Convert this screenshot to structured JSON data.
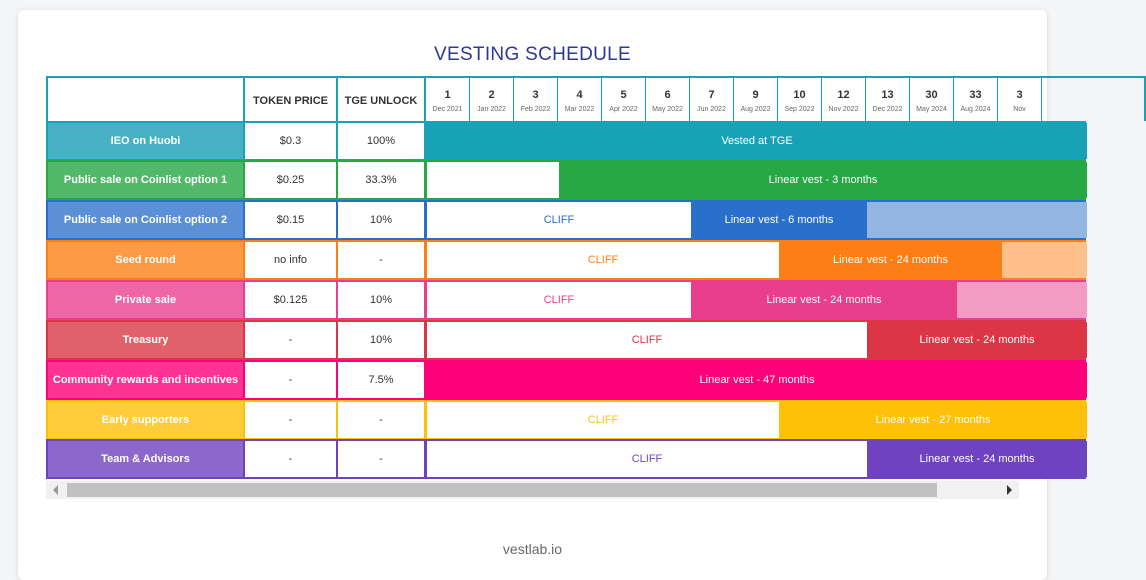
{
  "title": "VESTING SCHEDULE",
  "headers": {
    "token_price": "TOKEN PRICE",
    "tge_unlock": "TGE UNLOCK"
  },
  "months": [
    {
      "n": "1",
      "d": "Dec 2021"
    },
    {
      "n": "2",
      "d": "Jan 2022"
    },
    {
      "n": "3",
      "d": "Feb 2022"
    },
    {
      "n": "4",
      "d": "Mar 2022"
    },
    {
      "n": "5",
      "d": "Apr 2022"
    },
    {
      "n": "6",
      "d": "May 2022"
    },
    {
      "n": "7",
      "d": "Jun 2022"
    },
    {
      "n": "9",
      "d": "Aug 2022"
    },
    {
      "n": "10",
      "d": "Sep 2022"
    },
    {
      "n": "12",
      "d": "Nov 2022"
    },
    {
      "n": "13",
      "d": "Dec 2022"
    },
    {
      "n": "30",
      "d": "May 2024"
    },
    {
      "n": "33",
      "d": "Aug 2024"
    },
    {
      "n": "3",
      "d": "Nov"
    }
  ],
  "rows": [
    {
      "name": "IEO on Huobi",
      "price": "$0.3",
      "tge": "100%",
      "color": "#17a2b8",
      "name_bg": "#46b1c5",
      "light": "#17a2b8",
      "cliff": "",
      "vest": "Vested at TGE"
    },
    {
      "name": "Public sale on Coinlist option 1",
      "price": "$0.25",
      "tge": "33.3%",
      "color": "#28a745",
      "name_bg": "#52b86a",
      "light": "#94d3a2",
      "cliff": "",
      "vest": "Linear vest - 3 months"
    },
    {
      "name": "Public sale on Coinlist option 2",
      "price": "$0.15",
      "tge": "10%",
      "color": "#2a6fc9",
      "name_bg": "#5b8fd6",
      "light": "#94b6e3",
      "cliff": "CLIFF",
      "vest": "Linear vest - 6 months"
    },
    {
      "name": "Seed round",
      "price": "no info",
      "tge": "-",
      "color": "#fd7e14",
      "name_bg": "#fd9a46",
      "light": "#febf8a",
      "cliff": "CLIFF",
      "vest": "Linear vest - 24 months"
    },
    {
      "name": "Private sale",
      "price": "$0.125",
      "tge": "10%",
      "color": "#e83e8c",
      "name_bg": "#ee66a5",
      "light": "#f39bc5",
      "cliff": "CLIFF",
      "vest": "Linear vest - 24 months"
    },
    {
      "name": "Treasury",
      "price": "-",
      "tge": "10%",
      "color": "#dc3545",
      "name_bg": "#e0616c",
      "light": "#dc3545",
      "cliff": "CLIFF",
      "vest": "Linear vest - 24 months"
    },
    {
      "name": "Community rewards and incentives",
      "price": "-",
      "tge": "7.5%",
      "color": "#ff0078",
      "name_bg": "#ff3393",
      "light": "#ff0078",
      "cliff": "",
      "vest": "Linear vest - 47 months"
    },
    {
      "name": "Early supporters",
      "price": "-",
      "tge": "-",
      "color": "#ffc107",
      "name_bg": "#ffcd39",
      "light": "#ffc107",
      "cliff": "CLIFF",
      "vest": "Linear vest - 27 months"
    },
    {
      "name": "Team & Advisors",
      "price": "-",
      "tge": "-",
      "color": "#6f42c1",
      "name_bg": "#8c68cd",
      "light": "#6f42c1",
      "cliff": "CLIFF",
      "vest": "Linear vest - 24 months"
    }
  ],
  "footer": "vestlab.io"
}
